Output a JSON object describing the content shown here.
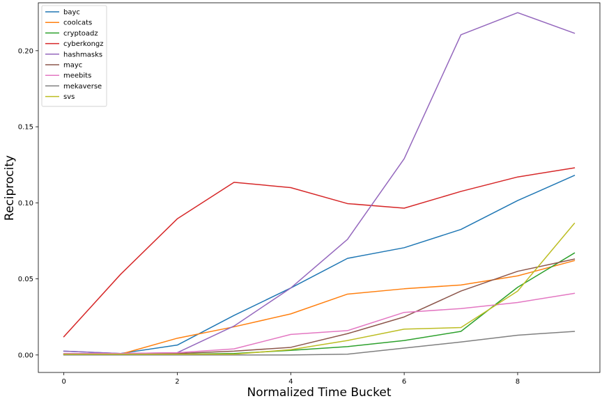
{
  "chart_data": {
    "type": "line",
    "title": "",
    "xlabel": "Normalized Time Bucket",
    "ylabel": "Reciprocity",
    "x": [
      0,
      1,
      2,
      3,
      4,
      5,
      6,
      7,
      8,
      9
    ],
    "xlim": [
      -0.45,
      9.45
    ],
    "ylim": [
      -0.0115,
      0.2315
    ],
    "xticks": [
      0,
      2,
      4,
      6,
      8
    ],
    "xtick_labels": [
      "0",
      "2",
      "4",
      "6",
      "8"
    ],
    "yticks": [
      0.0,
      0.05,
      0.1,
      0.15,
      0.2
    ],
    "ytick_labels": [
      "0.00",
      "0.05",
      "0.10",
      "0.15",
      "0.20"
    ],
    "grid": false,
    "legend_position": "top-left",
    "series": [
      {
        "name": "bayc",
        "color": "#1f77b4",
        "values": [
          0.0025,
          0.001,
          0.0065,
          0.026,
          0.044,
          0.0635,
          0.0705,
          0.0825,
          0.1015,
          0.118
        ]
      },
      {
        "name": "coolcats",
        "color": "#ff7f0e",
        "values": [
          0.0005,
          0.0005,
          0.011,
          0.0185,
          0.027,
          0.04,
          0.0435,
          0.046,
          0.052,
          0.062
        ]
      },
      {
        "name": "cryptoadz",
        "color": "#2ca02c",
        "values": [
          0.0005,
          0.0005,
          0.0005,
          0.001,
          0.003,
          0.0055,
          0.0095,
          0.0155,
          0.0445,
          0.067
        ]
      },
      {
        "name": "cyberkongz",
        "color": "#d62728",
        "values": [
          0.012,
          0.053,
          0.0895,
          0.1135,
          0.11,
          0.0995,
          0.0965,
          0.1075,
          0.117,
          0.123
        ]
      },
      {
        "name": "hashmasks",
        "color": "#9467bd",
        "values": [
          0.0025,
          0.001,
          0.0015,
          0.019,
          0.044,
          0.076,
          0.129,
          0.2105,
          0.225,
          0.2115
        ]
      },
      {
        "name": "mayc",
        "color": "#8c564b",
        "values": [
          0.0005,
          0.0005,
          0.001,
          0.0025,
          0.005,
          0.014,
          0.025,
          0.042,
          0.055,
          0.063
        ]
      },
      {
        "name": "meebits",
        "color": "#e377c2",
        "values": [
          0.001,
          0.001,
          0.0015,
          0.004,
          0.0135,
          0.016,
          0.028,
          0.0305,
          0.0345,
          0.0405
        ]
      },
      {
        "name": "mekaverse",
        "color": "#7f7f7f",
        "values": [
          0.0,
          0.0,
          0.0,
          0.0,
          0.0,
          0.0005,
          0.0045,
          0.0085,
          0.013,
          0.0155
        ]
      },
      {
        "name": "svs",
        "color": "#bcbd22",
        "values": [
          0.0005,
          0.0005,
          0.0005,
          0.0005,
          0.0035,
          0.0095,
          0.017,
          0.018,
          0.042,
          0.0865
        ]
      }
    ]
  }
}
